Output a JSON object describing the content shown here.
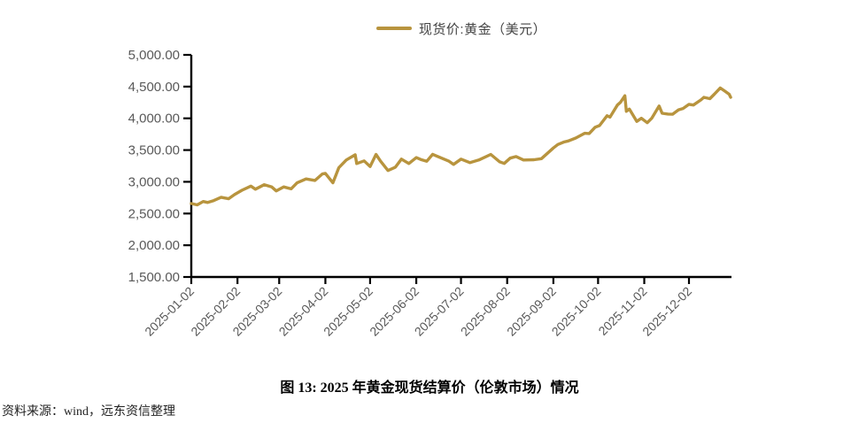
{
  "figure": {
    "caption": "图 13: 2025 年黄金现货结算价（伦敦市场）情况",
    "source": "资料来源：wind，远东资信整理"
  },
  "chart_data": {
    "type": "line",
    "title": "",
    "legend": {
      "label": "现货价:黄金（美元）",
      "position": "top-center"
    },
    "grid": false,
    "colors": {
      "series": "#B8943E",
      "axis": "#000000",
      "tick_label": "#595959"
    },
    "y_axis": {
      "range": [
        1500,
        5000
      ],
      "ticks": [
        5000,
        4500,
        4000,
        3500,
        3000,
        2500,
        2000,
        1500
      ],
      "tick_labels": [
        "5,000.00",
        "4,500.00",
        "4,000.00",
        "3,500.00",
        "3,000.00",
        "2,500.00",
        "2,000.00",
        "1,500.00"
      ]
    },
    "x_axis": {
      "type": "date",
      "range": [
        "2025-01-02",
        "2025-12-30"
      ],
      "tick_labels": [
        "2025-01-02",
        "2025-02-02",
        "2025-03-02",
        "2025-04-02",
        "2025-05-02",
        "2025-06-02",
        "2025-07-02",
        "2025-08-02",
        "2025-09-02",
        "2025-10-02",
        "2025-11-02",
        "2025-12-02"
      ]
    },
    "series": [
      {
        "name": "现货价:黄金（美元）",
        "color": "#B8943E",
        "points": [
          [
            "2025-01-02",
            2657
          ],
          [
            "2025-01-06",
            2636
          ],
          [
            "2025-01-10",
            2690
          ],
          [
            "2025-01-13",
            2674
          ],
          [
            "2025-01-17",
            2703
          ],
          [
            "2025-01-22",
            2756
          ],
          [
            "2025-01-27",
            2733
          ],
          [
            "2025-01-31",
            2798
          ],
          [
            "2025-02-05",
            2867
          ],
          [
            "2025-02-11",
            2932
          ],
          [
            "2025-02-14",
            2883
          ],
          [
            "2025-02-20",
            2954
          ],
          [
            "2025-02-25",
            2918
          ],
          [
            "2025-02-28",
            2857
          ],
          [
            "2025-03-05",
            2919
          ],
          [
            "2025-03-10",
            2889
          ],
          [
            "2025-03-14",
            2984
          ],
          [
            "2025-03-20",
            3045
          ],
          [
            "2025-03-26",
            3021
          ],
          [
            "2025-03-31",
            3124
          ],
          [
            "2025-04-02",
            3133
          ],
          [
            "2025-04-07",
            2983
          ],
          [
            "2025-04-11",
            3222
          ],
          [
            "2025-04-16",
            3343
          ],
          [
            "2025-04-22",
            3425
          ],
          [
            "2025-04-23",
            3288
          ],
          [
            "2025-04-28",
            3330
          ],
          [
            "2025-05-02",
            3240
          ],
          [
            "2025-05-06",
            3431
          ],
          [
            "2025-05-09",
            3325
          ],
          [
            "2025-05-14",
            3177
          ],
          [
            "2025-05-19",
            3230
          ],
          [
            "2025-05-23",
            3357
          ],
          [
            "2025-05-28",
            3288
          ],
          [
            "2025-06-02",
            3381
          ],
          [
            "2025-06-05",
            3352
          ],
          [
            "2025-06-09",
            3324
          ],
          [
            "2025-06-13",
            3432
          ],
          [
            "2025-06-16",
            3402
          ],
          [
            "2025-06-24",
            3324
          ],
          [
            "2025-06-27",
            3274
          ],
          [
            "2025-07-02",
            3357
          ],
          [
            "2025-07-08",
            3301
          ],
          [
            "2025-07-14",
            3343
          ],
          [
            "2025-07-22",
            3431
          ],
          [
            "2025-07-28",
            3314
          ],
          [
            "2025-07-31",
            3289
          ],
          [
            "2025-08-04",
            3373
          ],
          [
            "2025-08-08",
            3398
          ],
          [
            "2025-08-13",
            3343
          ],
          [
            "2025-08-20",
            3348
          ],
          [
            "2025-08-25",
            3365
          ],
          [
            "2025-08-29",
            3448
          ],
          [
            "2025-09-02",
            3533
          ],
          [
            "2025-09-05",
            3587
          ],
          [
            "2025-09-09",
            3626
          ],
          [
            "2025-09-12",
            3643
          ],
          [
            "2025-09-17",
            3689
          ],
          [
            "2025-09-23",
            3764
          ],
          [
            "2025-09-26",
            3760
          ],
          [
            "2025-09-30",
            3859
          ],
          [
            "2025-10-03",
            3886
          ],
          [
            "2025-10-08",
            4040
          ],
          [
            "2025-10-10",
            4018
          ],
          [
            "2025-10-15",
            4209
          ],
          [
            "2025-10-17",
            4251
          ],
          [
            "2025-10-20",
            4356
          ],
          [
            "2025-10-21",
            4110
          ],
          [
            "2025-10-23",
            4145
          ],
          [
            "2025-10-28",
            3951
          ],
          [
            "2025-10-31",
            4002
          ],
          [
            "2025-11-04",
            3931
          ],
          [
            "2025-11-07",
            4000
          ],
          [
            "2025-11-12",
            4194
          ],
          [
            "2025-11-14",
            4080
          ],
          [
            "2025-11-18",
            4067
          ],
          [
            "2025-11-21",
            4065
          ],
          [
            "2025-11-25",
            4134
          ],
          [
            "2025-11-28",
            4155
          ],
          [
            "2025-12-02",
            4220
          ],
          [
            "2025-12-05",
            4210
          ],
          [
            "2025-12-10",
            4290
          ],
          [
            "2025-12-12",
            4330
          ],
          [
            "2025-12-16",
            4310
          ],
          [
            "2025-12-19",
            4380
          ],
          [
            "2025-12-23",
            4478
          ],
          [
            "2025-12-26",
            4430
          ],
          [
            "2025-12-29",
            4380
          ],
          [
            "2025-12-30",
            4330
          ]
        ]
      }
    ]
  }
}
